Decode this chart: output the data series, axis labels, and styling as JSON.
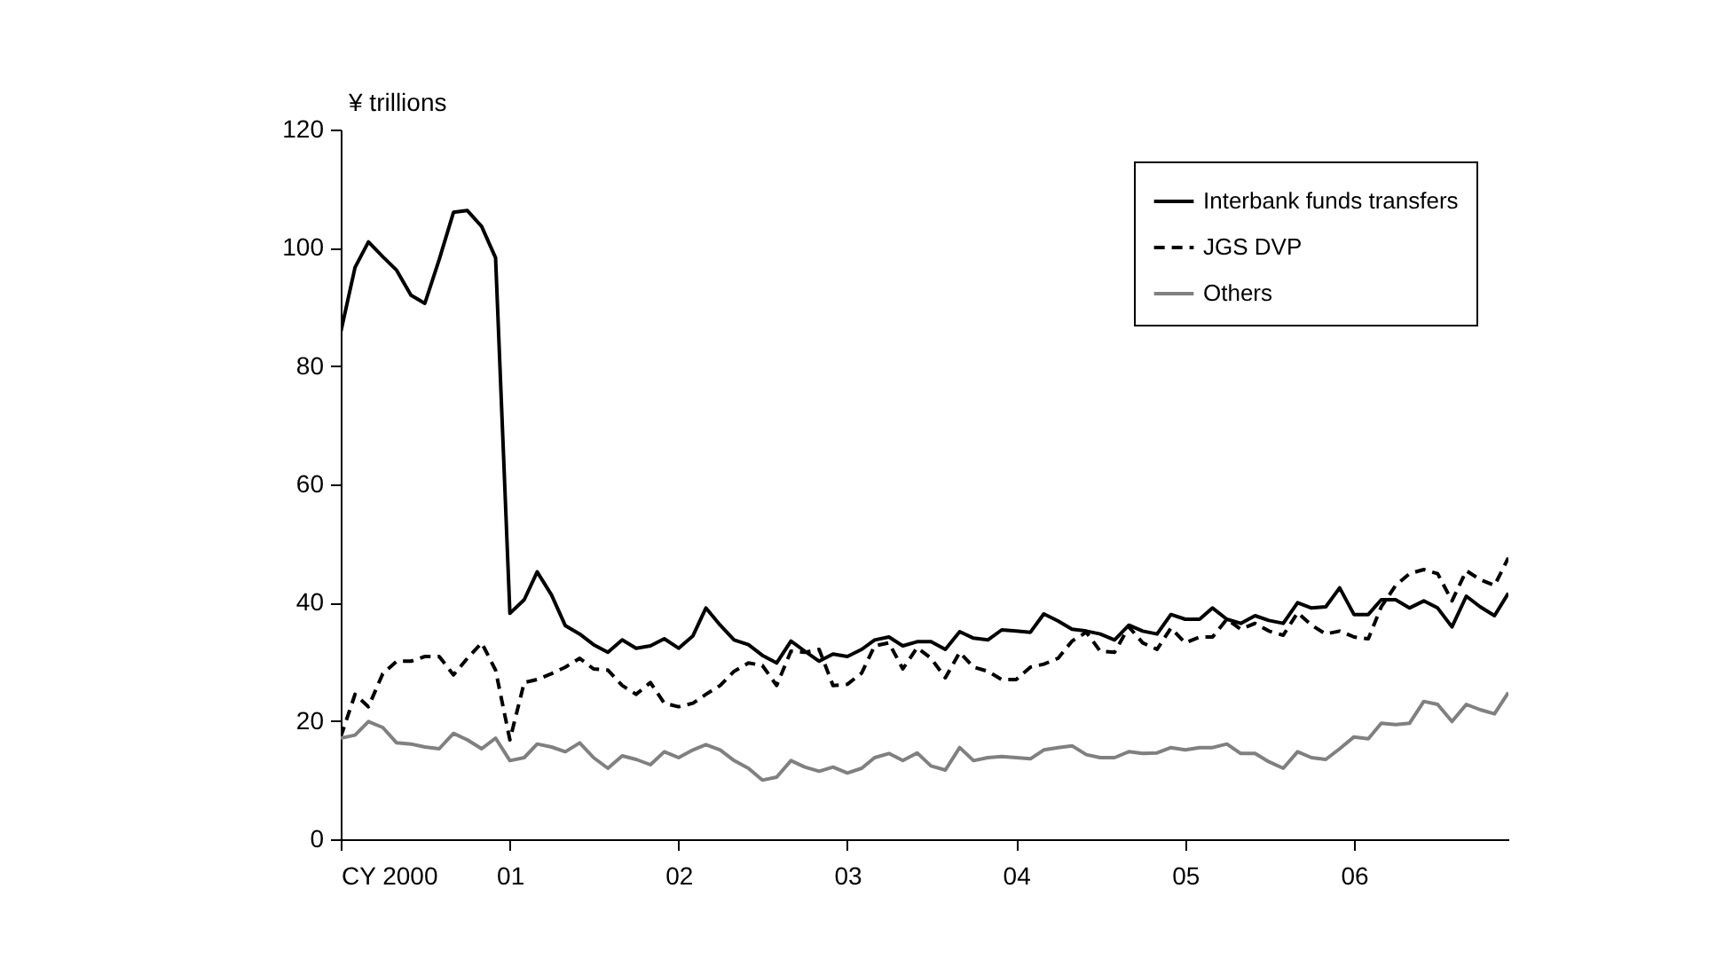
{
  "chart_data": {
    "type": "line",
    "ylabel": "¥ trillions",
    "x": [
      "2000-01",
      "2000-02",
      "2000-03",
      "2000-04",
      "2000-05",
      "2000-06",
      "2000-07",
      "2000-08",
      "2000-09",
      "2000-10",
      "2000-11",
      "2000-12",
      "2001-01",
      "2001-02",
      "2001-03",
      "2001-04",
      "2001-05",
      "2001-06",
      "2001-07",
      "2001-08",
      "2001-09",
      "2001-10",
      "2001-11",
      "2001-12",
      "2002-01",
      "2002-02",
      "2002-03",
      "2002-04",
      "2002-05",
      "2002-06",
      "2002-07",
      "2002-08",
      "2002-09",
      "2002-10",
      "2002-11",
      "2002-12",
      "2003-01",
      "2003-02",
      "2003-03",
      "2003-04",
      "2003-05",
      "2003-06",
      "2003-07",
      "2003-08",
      "2003-09",
      "2003-10",
      "2003-11",
      "2003-12",
      "2004-01",
      "2004-02",
      "2004-03",
      "2004-04",
      "2004-05",
      "2004-06",
      "2004-07",
      "2004-08",
      "2004-09",
      "2004-10",
      "2004-11",
      "2004-12",
      "2005-01",
      "2005-02",
      "2005-03",
      "2005-04",
      "2005-05",
      "2005-06",
      "2005-07",
      "2005-08",
      "2005-09",
      "2005-10",
      "2005-11",
      "2005-12",
      "2006-01",
      "2006-02",
      "2006-03",
      "2006-04",
      "2006-05",
      "2006-06",
      "2006-07",
      "2006-08",
      "2006-09",
      "2006-10",
      "2006-11",
      "2006-12"
    ],
    "xlim": [
      "2000-01",
      "2006-12"
    ],
    "xticks": [
      {
        "value": "2000-01",
        "label": "CY 2000"
      },
      {
        "value": "2001-01",
        "label": "01"
      },
      {
        "value": "2002-01",
        "label": "02"
      },
      {
        "value": "2003-01",
        "label": "03"
      },
      {
        "value": "2004-01",
        "label": "04"
      },
      {
        "value": "2005-01",
        "label": "05"
      },
      {
        "value": "2006-01",
        "label": "06"
      }
    ],
    "ylim": [
      0,
      120
    ],
    "yticks": [
      0,
      20,
      40,
      60,
      80,
      100,
      120
    ],
    "legend": "top right",
    "series": [
      {
        "name": "Interbank funds transfers",
        "color": "#000000",
        "line_style": "solid",
        "values": [
          85.7,
          96.7,
          101,
          98.5,
          96.2,
          92,
          90.6,
          98,
          106,
          106.3,
          103.6,
          98.3,
          38.2,
          40.5,
          45.2,
          41.3,
          36.1,
          34.7,
          32.9,
          31.6,
          33.7,
          32.3,
          32.7,
          33.9,
          32.3,
          34.4,
          39.1,
          36.2,
          33.7,
          32.9,
          31.1,
          29.8,
          33.5,
          31.8,
          30.1,
          31.3,
          30.9,
          32.1,
          33.7,
          34.2,
          32.7,
          33.4,
          33.4,
          32.1,
          35.1,
          34,
          33.7,
          35.4,
          35.2,
          35,
          38.1,
          36.9,
          35.5,
          35.2,
          34.7,
          33.7,
          36.2,
          35.2,
          34.7,
          38,
          37.2,
          37.2,
          39.1,
          37.2,
          36.5,
          37.8,
          37,
          36.5,
          40,
          39.1,
          39.3,
          42.5,
          38,
          38,
          40.5,
          40.5,
          39.1,
          40.3,
          39.1,
          35.9,
          41.1,
          39.3,
          37.8,
          41.6
        ]
      },
      {
        "name": "JGS DVP",
        "color": "#000000",
        "line_style": "dashed",
        "values": [
          17.3,
          24.5,
          22.4,
          28,
          30.1,
          30.1,
          30.9,
          30.9,
          27.8,
          30.6,
          33.2,
          28.6,
          16.8,
          26.5,
          27,
          28,
          29.1,
          30.6,
          28.8,
          28.6,
          26,
          24.5,
          26.5,
          23,
          22.4,
          23,
          24.5,
          26,
          28.4,
          29.8,
          29.4,
          26,
          31.8,
          31.6,
          32.1,
          26,
          26.2,
          28.1,
          32.7,
          33.2,
          28.8,
          32.4,
          30.6,
          27.3,
          31.6,
          29.1,
          28.4,
          27,
          27,
          29.1,
          29.6,
          30.6,
          33.5,
          35,
          31.8,
          31.6,
          35.9,
          33.2,
          32.1,
          35.7,
          33.2,
          34.2,
          34.2,
          37.2,
          35.5,
          36.5,
          35.2,
          34.5,
          38.3,
          36.2,
          34.7,
          35.2,
          34.2,
          33.9,
          39.3,
          42.9,
          44.9,
          45.6,
          44.9,
          40.3,
          45.4,
          43.9,
          42.9,
          47.6
        ]
      },
      {
        "name": "Others",
        "color": "#808080",
        "line_style": "solid",
        "values": [
          17.1,
          17.6,
          19.9,
          18.9,
          16.3,
          16.1,
          15.6,
          15.3,
          17.9,
          16.8,
          15.3,
          17.1,
          13.3,
          13.8,
          16.1,
          15.6,
          14.8,
          16.3,
          13.8,
          12,
          14.1,
          13.5,
          12.6,
          14.8,
          13.8,
          15.1,
          16,
          15.1,
          13.3,
          12,
          10,
          10.5,
          13.3,
          12.2,
          11.5,
          12.2,
          11.2,
          12,
          13.8,
          14.5,
          13.3,
          14.6,
          12.4,
          11.7,
          15.5,
          13.3,
          13.8,
          14,
          13.8,
          13.6,
          15.1,
          15.5,
          15.8,
          14.3,
          13.8,
          13.8,
          14.8,
          14.5,
          14.6,
          15.5,
          15.1,
          15.5,
          15.5,
          16.1,
          14.5,
          14.5,
          13.1,
          12,
          14.8,
          13.8,
          13.5,
          15.3,
          17.3,
          17,
          19.6,
          19.4,
          19.6,
          23.3,
          22.8,
          19.9,
          22.8,
          21.9,
          21.2,
          24.8
        ]
      }
    ]
  }
}
